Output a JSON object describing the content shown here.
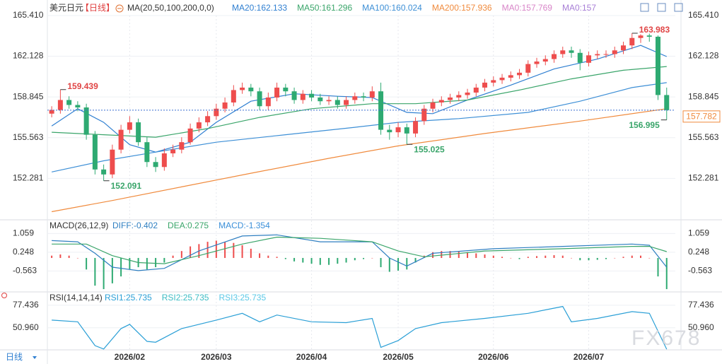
{
  "header": {
    "symbol": "美元日元",
    "period": "【日线】",
    "indicator": "MA(20,50,100,200,0,0)"
  },
  "bottom_tab": "日线",
  "watermark": "FX678",
  "chart_data": [
    {
      "type": "candlestick",
      "up_color": "#ee4d4d",
      "down_color": "#2eaa72",
      "xlim": [
        -0.5,
        72
      ],
      "xticks": [
        {
          "value": 9,
          "label": "2026/02"
        },
        {
          "value": 19,
          "label": "2026/03"
        },
        {
          "value": 30,
          "label": "2026/04"
        },
        {
          "value": 40,
          "label": "2026/05"
        },
        {
          "value": 51,
          "label": "2026/06"
        },
        {
          "value": 62,
          "label": "2026/07"
        }
      ],
      "ylim": [
        149.0,
        166.66
      ],
      "yticks": [
        {
          "value": 152.281,
          "label": "152.281"
        },
        {
          "value": 155.563,
          "label": "155.563"
        },
        {
          "value": 158.845,
          "label": "158.845"
        },
        {
          "value": 162.128,
          "label": "162.128"
        },
        {
          "value": 165.41,
          "label": "165.410"
        }
      ],
      "open": [
        157.5,
        157.8,
        158.6,
        158.2,
        158.0,
        155.8,
        153.0,
        152.6,
        154.6,
        156.2,
        156.8,
        155.2,
        153.6,
        153.2,
        154.3,
        154.6,
        155.2,
        156.3,
        156.8,
        157.3,
        157.9,
        158.4,
        159.4,
        159.6,
        159.3,
        158.1,
        158.8,
        159.6,
        159.3,
        158.6,
        159.1,
        158.8,
        158.5,
        158.6,
        158.2,
        158.6,
        158.9,
        158.8,
        159.3,
        156.2,
        156.0,
        156.4,
        155.9,
        156.9,
        157.9,
        158.4,
        158.6,
        158.8,
        159.0,
        159.2,
        159.6,
        160.0,
        160.2,
        160.4,
        160.6,
        160.8,
        161.5,
        161.7,
        161.9,
        162.3,
        162.6,
        162.4,
        161.6,
        162.2,
        162.3,
        162.3,
        162.6,
        163.0,
        163.6,
        163.8,
        163.7,
        159.0
      ],
      "high": [
        158.1,
        159.439,
        158.9,
        158.5,
        158.3,
        156.1,
        153.4,
        155.0,
        156.6,
        157.3,
        157.1,
        155.6,
        154.0,
        154.7,
        155.0,
        155.6,
        156.7,
        157.2,
        157.7,
        158.3,
        158.8,
        159.8,
        160.0,
        159.9,
        159.6,
        159.2,
        160.0,
        159.9,
        159.6,
        159.4,
        159.4,
        159.1,
        158.9,
        158.9,
        158.9,
        159.2,
        159.2,
        159.7,
        160.0,
        156.6,
        156.8,
        156.7,
        157.2,
        158.2,
        158.7,
        158.9,
        159.1,
        159.3,
        159.5,
        159.9,
        160.3,
        160.5,
        160.7,
        160.9,
        161.1,
        161.8,
        162.0,
        162.2,
        162.6,
        162.9,
        162.9,
        162.7,
        162.5,
        162.6,
        162.6,
        162.9,
        163.3,
        163.983,
        163.9,
        163.95,
        163.8,
        159.6
      ],
      "low": [
        157.2,
        157.5,
        157.9,
        157.7,
        155.4,
        152.6,
        152.091,
        152.3,
        154.3,
        155.9,
        154.9,
        153.2,
        152.8,
        152.9,
        154.0,
        154.3,
        155.0,
        156.0,
        156.5,
        157.0,
        157.6,
        158.1,
        159.1,
        158.9,
        157.8,
        157.8,
        158.5,
        158.9,
        158.3,
        158.3,
        158.5,
        158.2,
        158.2,
        157.9,
        157.9,
        158.3,
        158.5,
        158.5,
        155.8,
        155.4,
        155.6,
        155.025,
        155.6,
        156.6,
        157.6,
        158.1,
        158.3,
        158.5,
        158.7,
        158.9,
        159.3,
        159.7,
        159.9,
        160.1,
        160.3,
        160.5,
        161.2,
        161.4,
        161.6,
        162.0,
        162.0,
        161.0,
        161.3,
        161.9,
        162.0,
        162.0,
        162.3,
        162.7,
        163.2,
        163.3,
        158.6,
        156.995
      ],
      "close": [
        157.8,
        158.6,
        158.2,
        158.0,
        155.8,
        153.0,
        152.6,
        154.6,
        156.2,
        156.8,
        155.2,
        153.6,
        153.2,
        154.3,
        154.6,
        155.2,
        156.3,
        156.8,
        157.3,
        157.9,
        158.4,
        159.4,
        159.6,
        159.3,
        158.1,
        158.8,
        159.6,
        159.3,
        158.6,
        159.1,
        158.8,
        158.5,
        158.6,
        158.2,
        158.6,
        158.9,
        158.8,
        159.3,
        156.2,
        156.0,
        156.4,
        155.9,
        156.9,
        157.9,
        158.4,
        158.6,
        158.8,
        159.0,
        159.2,
        159.6,
        160.0,
        160.2,
        160.4,
        160.6,
        160.8,
        161.5,
        161.7,
        161.9,
        162.3,
        162.6,
        162.4,
        161.6,
        162.2,
        162.3,
        162.3,
        162.6,
        163.0,
        163.6,
        163.8,
        163.7,
        159.0,
        157.782
      ],
      "extremes": [
        {
          "index": 1,
          "field": "high",
          "label": "159.439"
        },
        {
          "index": 6,
          "field": "low",
          "label": "152.091"
        },
        {
          "index": 41,
          "field": "low",
          "label": "155.025"
        },
        {
          "index": 67,
          "field": "high",
          "label": "163.983"
        },
        {
          "index": 71,
          "field": "low",
          "label": "156.995"
        }
      ],
      "last_price": 157.782,
      "last_price_color": "#f08a3c",
      "series": [
        {
          "name": "MA20:162.133",
          "color": "#2f7fd1",
          "x": [
            0,
            3,
            6,
            9,
            12,
            16,
            19,
            23,
            28,
            33,
            37,
            41,
            44,
            48,
            53,
            58,
            63,
            68,
            71
          ],
          "values": [
            156.5,
            157.9,
            156.8,
            155.0,
            154.4,
            155.2,
            156.8,
            158.5,
            159.1,
            158.9,
            158.8,
            157.6,
            157.5,
            158.6,
            159.8,
            161.1,
            161.9,
            163.0,
            162.1
          ]
        },
        {
          "name": "MA50:161.296",
          "color": "#3aa56a",
          "x": [
            0,
            6,
            12,
            18,
            24,
            30,
            37,
            42,
            48,
            54,
            60,
            66,
            71
          ],
          "values": [
            156.0,
            155.8,
            155.6,
            156.3,
            157.2,
            157.9,
            158.3,
            158.3,
            158.6,
            159.4,
            160.3,
            161.0,
            161.3
          ]
        },
        {
          "name": "MA100:160.024",
          "color": "#3d8fd6",
          "x": [
            0,
            6,
            12,
            19,
            27,
            35,
            40,
            47,
            55,
            61,
            67,
            71
          ],
          "values": [
            152.8,
            153.7,
            154.4,
            155.2,
            155.8,
            156.4,
            156.8,
            157.1,
            157.6,
            158.5,
            159.6,
            160.0
          ]
        },
        {
          "name": "MA200:157.936",
          "color": "#f08a3c",
          "x": [
            0,
            7,
            15,
            23,
            32,
            40,
            50,
            61,
            71
          ],
          "values": [
            149.6,
            150.5,
            151.6,
            152.7,
            153.9,
            154.9,
            155.9,
            156.9,
            157.9
          ]
        }
      ],
      "legend_extra": [
        {
          "name": "MA0:157.769",
          "color": "#d885c8"
        },
        {
          "name": "MA0:157",
          "color": "#a77ed6"
        }
      ]
    },
    {
      "type": "macd",
      "title": "MACD(26,12,9)",
      "ylim": [
        -1.44,
        1.59
      ],
      "yticks": [
        -0.563,
        0.248,
        1.059
      ],
      "up_color": "#ee4d4d",
      "down_color": "#2eaa72",
      "histogram": [
        0.1,
        0.15,
        0.1,
        0.0,
        -0.5,
        -1.2,
        -1.35,
        -1.1,
        -0.8,
        -0.5,
        -0.4,
        -0.5,
        -0.4,
        -0.2,
        0.1,
        0.3,
        0.5,
        0.6,
        0.7,
        0.75,
        0.7,
        0.65,
        0.55,
        0.4,
        0.2,
        0.1,
        0.05,
        -0.05,
        -0.15,
        -0.2,
        -0.25,
        -0.3,
        -0.3,
        -0.25,
        -0.2,
        -0.1,
        -0.05,
        0.0,
        -0.4,
        -0.6,
        -0.55,
        -0.5,
        -0.2,
        0.1,
        0.25,
        0.3,
        0.3,
        0.28,
        0.25,
        0.2,
        0.15,
        0.1,
        0.05,
        0.0,
        -0.05,
        0.05,
        0.08,
        0.1,
        0.12,
        0.1,
        0.0,
        -0.1,
        -0.1,
        -0.08,
        -0.05,
        0.0,
        0.05,
        0.1,
        0.1,
        0.0,
        -0.8,
        -1.35
      ],
      "histogram_label": {
        "text": "MACD:-1.354",
        "color": "#3a8fd8"
      },
      "series": [
        {
          "name": "DIFF:-0.402",
          "color": "#2f7fc1",
          "x": [
            0,
            3,
            5,
            7,
            10,
            13,
            17,
            22,
            26,
            31,
            37,
            39,
            41,
            44,
            51,
            59,
            67,
            69,
            71
          ],
          "values": [
            0.75,
            0.7,
            0.2,
            -0.4,
            -0.55,
            -0.45,
            0.3,
            0.95,
            1.0,
            0.7,
            0.7,
            0.0,
            -0.35,
            0.2,
            0.4,
            0.5,
            0.6,
            0.55,
            -0.402
          ]
        },
        {
          "name": "DEA:0.275",
          "color": "#3aa56a",
          "x": [
            0,
            4,
            7,
            10,
            13,
            17,
            22,
            26,
            31,
            37,
            40,
            43,
            50,
            59,
            67,
            69,
            71
          ],
          "values": [
            0.6,
            0.6,
            0.1,
            -0.2,
            -0.25,
            0.1,
            0.6,
            0.9,
            0.85,
            0.7,
            0.3,
            0.05,
            0.3,
            0.4,
            0.5,
            0.5,
            0.275
          ]
        }
      ]
    },
    {
      "type": "rsi",
      "title": "RSI(14,14,14)",
      "ylim": [
        25,
        91.5
      ],
      "yticks": [
        {
          "value": 50.96,
          "label": "50.960"
        },
        77.436
      ],
      "series": [
        {
          "name": "RSI1:25.735",
          "color": "#2a9fd6",
          "x": [
            0,
            3,
            5,
            6,
            8,
            9,
            11,
            12,
            15,
            19,
            22,
            24,
            26,
            30,
            34,
            37,
            38,
            40,
            42,
            45,
            50,
            55,
            59,
            60,
            63,
            67,
            69,
            71
          ],
          "values": [
            60,
            58,
            30,
            26,
            50,
            55,
            35,
            34,
            50,
            60,
            68,
            58,
            66,
            58,
            57,
            62,
            28,
            36,
            50,
            57,
            62,
            68,
            76,
            58,
            62,
            70,
            68,
            25.735
          ]
        }
      ],
      "legend_extra": [
        {
          "name": "RSI2:25.735",
          "color": "#3cbcc4"
        },
        {
          "name": "RSI3:25.735",
          "color": "#5ac8e6"
        }
      ]
    }
  ]
}
